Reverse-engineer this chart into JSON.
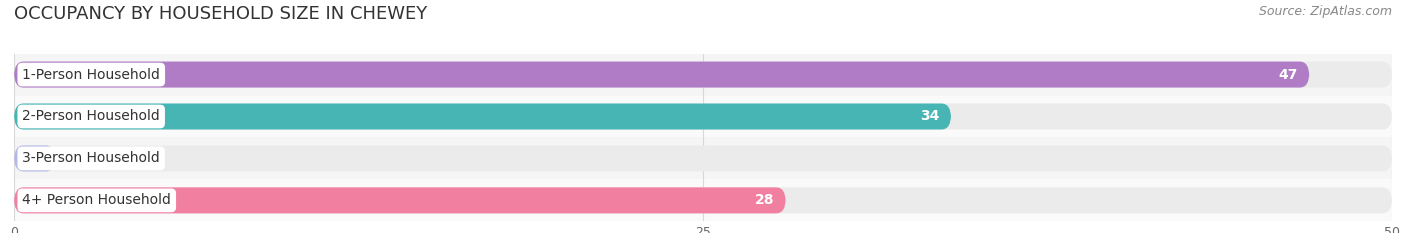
{
  "title": "OCCUPANCY BY HOUSEHOLD SIZE IN CHEWEY",
  "source": "Source: ZipAtlas.com",
  "categories": [
    "1-Person Household",
    "2-Person Household",
    "3-Person Household",
    "4+ Person Household"
  ],
  "values": [
    47,
    34,
    0,
    28
  ],
  "bar_colors": [
    "#b07cc6",
    "#48b5b5",
    "#b3b8e8",
    "#f07fa0"
  ],
  "bar_bg_color": "#ebebeb",
  "row_bg_even": "#f5f5f5",
  "row_bg_odd": "#fafafa",
  "xlim": [
    0,
    50
  ],
  "xticks": [
    0,
    25,
    50
  ],
  "title_fontsize": 13,
  "source_fontsize": 9,
  "label_fontsize": 10,
  "value_fontsize": 10,
  "background_color": "#ffffff",
  "bar_height": 0.62,
  "grid_color": "#d8d8d8"
}
